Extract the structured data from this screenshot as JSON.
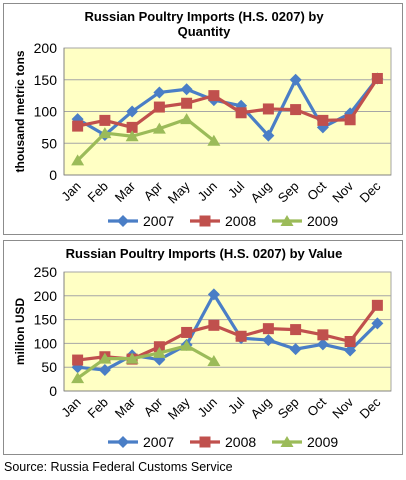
{
  "colors": {
    "plot_bg": "#ffffc4",
    "grid": "#a6a6a6",
    "axis": "#808080",
    "series_2007": "#4a7ec6",
    "series_2008": "#c0504d",
    "series_2009": "#9bbb59"
  },
  "source_text": "Source: Russia Federal Customs Service",
  "chart_data": [
    {
      "type": "line",
      "title": "Russian Poultry Imports (H.S. 0207) by Quantity",
      "ylabel": "thousand metric tons",
      "xlabel": "",
      "ylim": [
        0,
        200
      ],
      "yticks": [
        0,
        50,
        100,
        150,
        200
      ],
      "grid": true,
      "legend": "bottom",
      "categories": [
        "Jan",
        "Feb",
        "Mar",
        "Apr",
        "May",
        "Jun",
        "Jul",
        "Aug",
        "Sep",
        "Oct",
        "Nov",
        "Dec"
      ],
      "series": [
        {
          "name": "2007",
          "values": [
            88,
            63,
            100,
            130,
            135,
            118,
            109,
            62,
            150,
            75,
            97,
            152
          ]
        },
        {
          "name": "2008",
          "values": [
            77,
            86,
            75,
            107,
            113,
            125,
            98,
            104,
            103,
            86,
            87,
            152
          ]
        },
        {
          "name": "2009",
          "values": [
            23,
            66,
            61,
            73,
            88,
            54,
            null,
            null,
            null,
            null,
            null,
            null
          ]
        }
      ]
    },
    {
      "type": "line",
      "title": "Russian Poultry Imports (H.S. 0207) by Value",
      "ylabel": "million USD",
      "xlabel": "",
      "ylim": [
        0,
        250
      ],
      "yticks": [
        0,
        50,
        100,
        150,
        200,
        250
      ],
      "grid": true,
      "legend": "bottom",
      "categories": [
        "Jan",
        "Feb",
        "Mar",
        "Apr",
        "May",
        "Jun",
        "Jul",
        "Aug",
        "Sep",
        "Oct",
        "Nov",
        "Dec"
      ],
      "series": [
        {
          "name": "2007",
          "values": [
            50,
            44,
            75,
            66,
            97,
            203,
            111,
            107,
            88,
            98,
            85,
            142
          ]
        },
        {
          "name": "2008",
          "values": [
            65,
            72,
            67,
            93,
            123,
            138,
            115,
            131,
            129,
            118,
            104,
            180
          ]
        },
        {
          "name": "2009",
          "values": [
            27,
            68,
            68,
            80,
            95,
            63,
            null,
            null,
            null,
            null,
            null,
            null
          ]
        }
      ]
    }
  ]
}
